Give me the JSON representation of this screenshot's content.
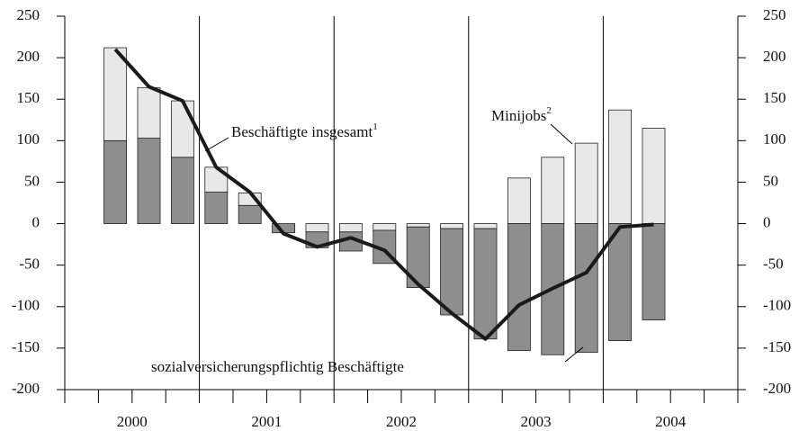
{
  "chart_data": {
    "type": "bar",
    "x": [
      2000.375,
      2000.625,
      2000.875,
      2001.125,
      2001.375,
      2001.625,
      2001.875,
      2002.125,
      2002.375,
      2002.625,
      2002.875,
      2003.125,
      2003.375,
      2003.625,
      2003.875,
      2004.125,
      2004.375
    ],
    "series": [
      {
        "name": "sozialversicherungspflichtig Beschäftigte",
        "color": "#8e8e8e",
        "kind": "bar",
        "values": [
          100,
          103,
          80,
          38,
          22,
          -11,
          -19,
          -23,
          -40,
          -73,
          -104,
          -133,
          -153,
          -158,
          -155,
          -141,
          -116
        ]
      },
      {
        "name": "Minijobs",
        "note": "2",
        "color": "#e8e8e8",
        "kind": "bar",
        "values": [
          112,
          61,
          68,
          30,
          15,
          0,
          -10,
          -10,
          -8,
          -4,
          -6,
          -6,
          55,
          80,
          97,
          137,
          115
        ]
      },
      {
        "name": "Beschäftigte insgesamt",
        "note": "1",
        "color": "#1a1a1a",
        "kind": "line",
        "values": [
          210,
          165,
          148,
          68,
          38,
          -12,
          -28,
          -17,
          -32,
          -73,
          -108,
          -139,
          -98,
          -78,
          -59,
          -4,
          -1
        ]
      }
    ],
    "xlim": [
      2000,
      2005
    ],
    "xticks": [
      {
        "value": 2000.5,
        "label": "2000"
      },
      {
        "value": 2001.5,
        "label": "2001"
      },
      {
        "value": 2002.5,
        "label": "2002"
      },
      {
        "value": 2003.5,
        "label": "2003"
      },
      {
        "value": 2004.5,
        "label": "2004"
      }
    ],
    "xminorticks": [
      2000,
      2000.25,
      2000.5,
      2000.75,
      2001,
      2001.25,
      2001.5,
      2001.75,
      2002,
      2002.25,
      2002.5,
      2002.75,
      2003,
      2003.25,
      2003.5,
      2003.75,
      2004,
      2004.25,
      2004.5,
      2004.75,
      2005
    ],
    "xgrid": [
      2001,
      2002,
      2003,
      2004
    ],
    "ylim": [
      -200,
      250
    ],
    "yticks": [
      -200,
      -150,
      -100,
      -50,
      0,
      50,
      100,
      150,
      200,
      250
    ],
    "y2lim": [
      -200,
      250
    ],
    "y2ticks": [
      -200,
      -150,
      -100,
      -50,
      0,
      50,
      100,
      150,
      200,
      250
    ]
  }
}
